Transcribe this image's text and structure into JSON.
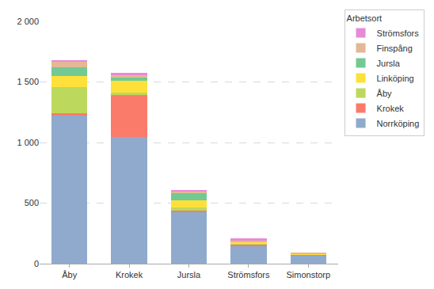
{
  "chart_data": {
    "type": "bar",
    "stacked": true,
    "legend_title": "Arbetsort",
    "legend": "right",
    "grid": true,
    "categories": [
      "Åby",
      "Krokek",
      "Jursla",
      "Strömsfors",
      "Simonstorp"
    ],
    "series": [
      {
        "name": "Norrköping",
        "color": "#8faacc",
        "values": [
          1220,
          1045,
          425,
          150,
          70
        ]
      },
      {
        "name": "Krokek",
        "color": "#fb7b6b",
        "values": [
          20,
          345,
          10,
          12,
          5
        ]
      },
      {
        "name": "Åby",
        "color": "#bcd95d",
        "values": [
          215,
          20,
          30,
          5,
          2
        ]
      },
      {
        "name": "Linköping",
        "color": "#fde13a",
        "values": [
          95,
          100,
          55,
          10,
          3
        ]
      },
      {
        "name": "Jursla",
        "color": "#72c994",
        "values": [
          70,
          25,
          65,
          5,
          2
        ]
      },
      {
        "name": "Finspång",
        "color": "#e3b894",
        "values": [
          50,
          20,
          15,
          8,
          5
        ]
      },
      {
        "name": "Strömsfors",
        "color": "#e78ad6",
        "values": [
          5,
          20,
          5,
          20,
          0
        ]
      }
    ],
    "ylim": [
      0,
      2000
    ],
    "yticks": [
      0,
      500,
      {
        "value": 1000,
        "label": "1 000"
      },
      {
        "value": 1500,
        "label": "1 500"
      },
      {
        "value": 2000,
        "label": "2 000"
      }
    ]
  }
}
